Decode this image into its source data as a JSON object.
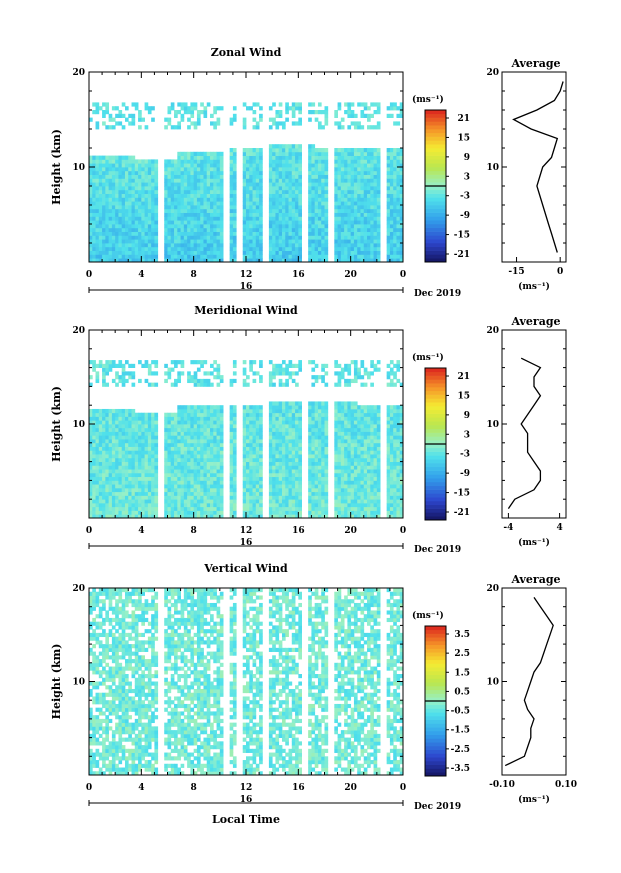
{
  "chart_data": [
    {
      "type": "heatmap",
      "panel": "zonal",
      "title": "Zonal Wind",
      "ylabel": "Height (km)",
      "yticks": [
        "20",
        "10"
      ],
      "xticks": [
        "0",
        "4",
        "8",
        "12",
        "16",
        "20",
        "0"
      ],
      "date_day": "16",
      "date_label": "Dec 2019",
      "colorbar_unit": "(ms⁻¹)",
      "colorbar_ticks": [
        "21",
        "15",
        "9",
        "3",
        "-3",
        "-9",
        "-15",
        "-21"
      ],
      "clim": [
        -24,
        24
      ],
      "base_value": -6,
      "top_value": -3,
      "gaps_hours": [
        5.5,
        10.5,
        11.5,
        13.5,
        16.5,
        18.5,
        22.5
      ],
      "cloud_top_km": [
        11.2,
        11.0,
        11.5,
        12.2,
        12.5,
        12.0,
        11.8
      ],
      "profile": {
        "title": "Average",
        "yticks": [
          "20",
          "10"
        ],
        "xticks": [
          "-15",
          "0"
        ],
        "xlim": [
          -20,
          2
        ],
        "xlabel": "(ms⁻¹)",
        "heights_km": [
          1,
          2,
          3,
          4,
          5,
          6,
          7,
          8,
          9,
          10,
          11,
          12,
          13,
          14,
          15,
          16,
          17,
          18,
          19
        ],
        "values": [
          -1,
          -2,
          -3,
          -4,
          -5,
          -6,
          -7,
          -8,
          -7,
          -6,
          -3,
          -2,
          -1,
          -10,
          -16,
          -8,
          -2,
          0,
          1
        ]
      }
    },
    {
      "type": "heatmap",
      "panel": "meridional",
      "title": "Meridional Wind",
      "ylabel": "Height (km)",
      "yticks": [
        "20",
        "10"
      ],
      "xticks": [
        "0",
        "4",
        "8",
        "12",
        "16",
        "20",
        "0"
      ],
      "date_day": "16",
      "date_label": "Dec 2019",
      "colorbar_unit": "(ms⁻¹)",
      "colorbar_ticks": [
        "21",
        "15",
        "9",
        "3",
        "-3",
        "-9",
        "-15",
        "-21"
      ],
      "clim": [
        -24,
        24
      ],
      "base_value": -2,
      "top_value": -3,
      "gaps_hours": [
        5.5,
        10.5,
        11.5,
        13.5,
        16.5,
        18.5,
        22.5
      ],
      "cloud_top_km": [
        11.5,
        11.2,
        12.0,
        12.0,
        12.5,
        12.5,
        12.0
      ],
      "profile": {
        "title": "Average",
        "yticks": [
          "20",
          "10"
        ],
        "xticks": [
          "-4",
          "4"
        ],
        "xlim": [
          -5,
          5
        ],
        "xlabel": "(ms⁻¹)",
        "heights_km": [
          1,
          2,
          3,
          4,
          5,
          6,
          7,
          8,
          9,
          10,
          11,
          12,
          13,
          14,
          15,
          16,
          17
        ],
        "values": [
          -4,
          -3,
          0,
          1,
          1,
          0,
          -1,
          -1,
          -1,
          -2,
          -1,
          0,
          1,
          0,
          0,
          1,
          -2
        ]
      }
    },
    {
      "type": "heatmap",
      "panel": "vertical",
      "title": "Vertical Wind",
      "ylabel": "Height (km)",
      "yticks": [
        "20",
        "10"
      ],
      "xticks": [
        "0",
        "4",
        "8",
        "12",
        "16",
        "20",
        "0"
      ],
      "date_day": "16",
      "date_label": "Dec 2019",
      "xlabel": "Local Time",
      "colorbar_unit": "(ms⁻¹)",
      "colorbar_ticks": [
        "3.5",
        "2.5",
        "1.5",
        "0.5",
        "-0.5",
        "-1.5",
        "-2.5",
        "-3.5"
      ],
      "clim": [
        -4,
        4
      ],
      "base_value": -0.3,
      "top_value": -0.3,
      "gaps_hours": [
        5.5,
        10.5,
        11.5,
        13.5,
        16.5,
        18.5,
        22.5
      ],
      "cloud_top_km": [
        19.5,
        19.5,
        19.5,
        19.5,
        19.5,
        19.5,
        19.5
      ],
      "profile": {
        "title": "Average",
        "yticks": [
          "20",
          "10"
        ],
        "xticks": [
          "-0.10",
          "0.10"
        ],
        "xlim": [
          -0.1,
          0.1
        ],
        "xlabel": "(ms⁻¹)",
        "heights_km": [
          1,
          2,
          3,
          4,
          5,
          6,
          7,
          8,
          9,
          10,
          11,
          12,
          13,
          14,
          15,
          16,
          17,
          18,
          19
        ],
        "values": [
          -0.09,
          -0.03,
          -0.02,
          -0.01,
          -0.01,
          0.0,
          -0.02,
          -0.03,
          -0.02,
          -0.01,
          0.0,
          0.02,
          0.03,
          0.04,
          0.05,
          0.06,
          0.04,
          0.02,
          0.0
        ]
      }
    }
  ]
}
